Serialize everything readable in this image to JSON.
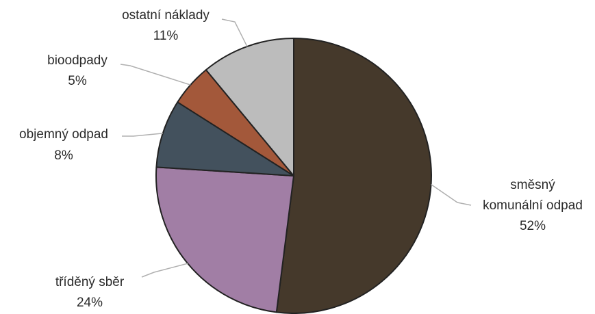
{
  "chart_data": {
    "type": "pie",
    "title": "",
    "start_angle_deg": 0,
    "direction": "clockwise",
    "legend": "none",
    "slices": [
      {
        "name": "směsný komunální odpad",
        "label_lines": [
          "směsný",
          "komunální odpad"
        ],
        "value": 52,
        "value_label": "52%",
        "color": "#45392b"
      },
      {
        "name": "tříděný sběr",
        "label_lines": [
          "tříděný sběr"
        ],
        "value": 24,
        "value_label": "24%",
        "color": "#a17ea5"
      },
      {
        "name": "objemný odpad",
        "label_lines": [
          "objemný odpad"
        ],
        "value": 8,
        "value_label": "8%",
        "color": "#43515d"
      },
      {
        "name": "bioodpady",
        "label_lines": [
          "bioodpady"
        ],
        "value": 5,
        "value_label": "5%",
        "color": "#a3583a"
      },
      {
        "name": "ostatní náklady",
        "label_lines": [
          "ostatní náklady"
        ],
        "value": 11,
        "value_label": "11%",
        "color": "#bcbcbc"
      }
    ]
  }
}
